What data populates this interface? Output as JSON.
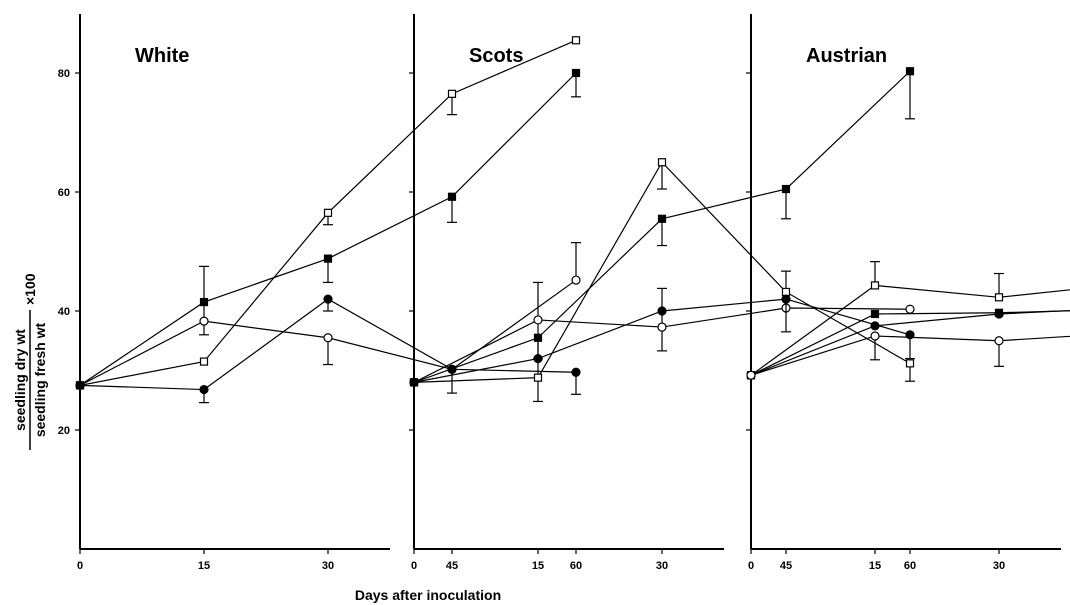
{
  "figure": {
    "xlabel": "Days after inoculation",
    "ylabel_num": "seedling dry wt",
    "ylabel_den": "seedling fresh wt",
    "ylabel_suffix": "×100"
  },
  "chart_data": [
    {
      "type": "line",
      "title": "White",
      "x": [
        0,
        15,
        30,
        45,
        60
      ],
      "xticks": [
        "0",
        "15",
        "30",
        "45",
        "60"
      ],
      "yticks": [
        "20",
        "40",
        "60",
        "80"
      ],
      "ylim": [
        0,
        90
      ],
      "series": [
        {
          "marker": "open-square",
          "values": [
            27.5,
            31.5,
            56.5,
            76.5,
            85.5
          ],
          "err_up": [
            0,
            0,
            0,
            0,
            0
          ],
          "err_down": [
            0,
            0,
            2,
            3.5,
            0
          ]
        },
        {
          "marker": "filled-square",
          "values": [
            27.5,
            41.5,
            48.8,
            59.2,
            80.0
          ],
          "err_up": [
            0,
            6,
            0,
            0,
            0
          ],
          "err_down": [
            0,
            5.5,
            4,
            4.3,
            4
          ]
        },
        {
          "marker": "open-circle",
          "values": [
            27.5,
            38.3,
            35.5,
            30.2,
            45.2
          ],
          "err_up": [
            0,
            0,
            0,
            0,
            6.3
          ],
          "err_down": [
            0,
            0,
            4.5,
            4,
            0
          ]
        },
        {
          "marker": "filled-circle",
          "values": [
            27.5,
            26.8,
            42.0,
            30.2,
            29.7
          ],
          "err_up": [
            0,
            0,
            0,
            0,
            0
          ],
          "err_down": [
            0,
            2.2,
            2,
            0,
            3.7
          ]
        }
      ]
    },
    {
      "type": "line",
      "title": "Scots",
      "x": [
        0,
        15,
        30,
        45,
        60
      ],
      "xticks": [
        "0",
        "15",
        "30",
        "45",
        "60"
      ],
      "yticks": [],
      "ylim": [
        0,
        90
      ],
      "series": [
        {
          "marker": "open-square",
          "values": [
            28.0,
            28.8,
            65.0,
            43.2,
            31.2
          ],
          "err_up": [
            0,
            16,
            0,
            3.5,
            0
          ],
          "err_down": [
            0,
            4,
            4.5,
            0,
            3
          ]
        },
        {
          "marker": "filled-square",
          "values": [
            28.0,
            35.5,
            55.5,
            60.5,
            80.3
          ],
          "err_up": [
            0,
            0,
            0,
            0,
            0
          ],
          "err_down": [
            0,
            3.5,
            4.5,
            5,
            8
          ]
        },
        {
          "marker": "open-circle",
          "values": [
            28.0,
            38.5,
            37.3,
            40.5,
            40.3
          ],
          "err_up": [
            0,
            0,
            6.5,
            0,
            0
          ],
          "err_down": [
            0,
            0,
            4,
            0,
            0
          ]
        },
        {
          "marker": "filled-circle",
          "values": [
            28.0,
            32.0,
            40.0,
            42.0,
            36.0
          ],
          "err_up": [
            0,
            0,
            0,
            0,
            0
          ],
          "err_down": [
            0,
            0,
            0,
            5.5,
            4
          ]
        }
      ]
    },
    {
      "type": "line",
      "title": "Austrian",
      "x": [
        0,
        15,
        30,
        45,
        60
      ],
      "xticks": [
        "0",
        "15",
        "30",
        "45",
        "60"
      ],
      "yticks": [],
      "ylim": [
        0,
        90
      ],
      "series": [
        {
          "marker": "open-square",
          "values": [
            29.2,
            44.3,
            42.3,
            44.5,
            31.7
          ],
          "err_up": [
            0,
            4,
            4,
            3,
            0
          ],
          "err_down": [
            0,
            0,
            0,
            0,
            4.3
          ]
        },
        {
          "marker": "filled-square",
          "values": [
            29.2,
            39.5,
            39.7,
            40.3,
            40.5
          ],
          "err_up": [
            0,
            0,
            0,
            0,
            3.5
          ],
          "err_down": [
            0,
            0,
            0,
            0,
            0
          ]
        },
        {
          "marker": "filled-circle",
          "values": [
            29.2,
            37.5,
            39.5,
            40.5,
            38.5
          ],
          "err_up": [
            0,
            0,
            0,
            0,
            0
          ],
          "err_down": [
            0,
            0,
            0,
            2.5,
            0
          ]
        },
        {
          "marker": "open-circle",
          "values": [
            29.2,
            35.8,
            35.0,
            36.3,
            36.8
          ],
          "err_up": [
            0,
            0,
            0,
            0,
            0
          ],
          "err_down": [
            0,
            4,
            4.3,
            4.8,
            0
          ]
        }
      ]
    }
  ]
}
